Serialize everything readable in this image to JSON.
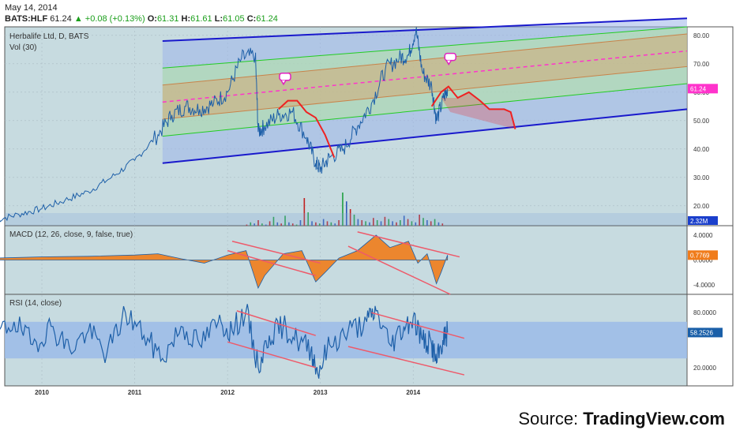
{
  "header": {
    "date": "May 14, 2014",
    "symbol": "BATS:HLF",
    "last": "61.24",
    "change": "+0.08 (+0.13%)",
    "o_label": "O:",
    "o": "61.31",
    "h_label": "H:",
    "h": "61.61",
    "l_label": "L:",
    "l": "61.05",
    "c_label": "C:",
    "c": "61.24"
  },
  "source": {
    "prefix": "Source: ",
    "brand": "TradingView.com"
  },
  "colors": {
    "background": "#c7dbe0",
    "price_line": "#1d5fa8",
    "channel_outer": "#1919cc",
    "channel_inner": "#22cc22",
    "channel_mid": "#ff33cc",
    "band_orange": "#d9a066",
    "projection_red": "#ee2222",
    "macd_orange": "#f07c1b",
    "rsi_band": "#9bbbe8",
    "trendline": "#ee5a6a"
  },
  "chart_data": [
    {
      "type": "line",
      "panel": "price",
      "title": "Herbalife Ltd, D, BATS",
      "indicator_label": "Vol (30)",
      "x_ticks": [
        "2010",
        "2011",
        "2012",
        "2013",
        "2014"
      ],
      "y_ticks": [
        "80.00",
        "70.00",
        "60.00",
        "50.00",
        "40.00",
        "30.00",
        "20.00"
      ],
      "ylim": [
        13,
        83
      ],
      "last_value_label": "61.24",
      "volume_label": "2.32M",
      "series": [
        {
          "values_x": [
            2009.5,
            2009.75,
            2010.0,
            2010.25,
            2010.5,
            2010.75,
            2011.0,
            2011.25,
            2011.4,
            2011.55,
            2011.7,
            2011.85,
            2012.0,
            2012.15,
            2012.3,
            2012.33,
            2012.4,
            2012.55,
            2012.7,
            2012.85,
            2012.95,
            2013.0,
            2013.1,
            2013.25,
            2013.4,
            2013.55,
            2013.7,
            2013.85,
            2013.95,
            2014.03,
            2014.1,
            2014.2,
            2014.25,
            2014.33,
            2014.37
          ],
          "values_y": [
            15,
            17,
            19,
            22,
            25,
            30,
            36,
            45,
            52,
            55,
            54,
            56,
            60,
            72,
            73,
            46,
            48,
            52,
            53,
            44,
            35,
            33,
            37,
            40,
            48,
            56,
            68,
            72,
            73,
            82,
            67,
            62,
            50,
            58,
            61.24
          ]
        }
      ]
    },
    {
      "type": "area",
      "panel": "macd",
      "title": "MACD (12, 26, close, 9, false, true)",
      "y_ticks": [
        "4.0000",
        "0.0000",
        "-4.0000"
      ],
      "ylim": [
        -5.5,
        5.5
      ],
      "last_value_label": "0.7769",
      "x": [
        2009.5,
        2010.0,
        2010.5,
        2011.0,
        2011.25,
        2011.5,
        2011.75,
        2012.0,
        2012.2,
        2012.33,
        2012.4,
        2012.6,
        2012.8,
        2012.95,
        2013.05,
        2013.2,
        2013.4,
        2013.6,
        2013.75,
        2013.95,
        2014.05,
        2014.15,
        2014.25,
        2014.3,
        2014.37
      ],
      "values": [
        0.3,
        0.5,
        0.6,
        0.8,
        1.0,
        0.2,
        -0.5,
        0.8,
        1.5,
        -4.5,
        -2.5,
        1.0,
        1.5,
        -3.5,
        -2.0,
        0.3,
        1.5,
        4.0,
        2.0,
        3.0,
        -0.5,
        1.0,
        -3.8,
        -2.0,
        0.78
      ]
    },
    {
      "type": "line",
      "panel": "rsi",
      "title": "RSI (14, close)",
      "y_ticks": [
        "80.0000",
        "20.0000"
      ],
      "ylim": [
        0,
        100
      ],
      "band": [
        30,
        70
      ],
      "last_value_label": "58.2526",
      "x": [
        2009.5,
        2009.7,
        2009.9,
        2010.1,
        2010.3,
        2010.5,
        2010.7,
        2010.9,
        2011.1,
        2011.3,
        2011.5,
        2011.7,
        2011.9,
        2012.05,
        2012.2,
        2012.33,
        2012.45,
        2012.6,
        2012.75,
        2012.9,
        2012.97,
        2013.1,
        2013.3,
        2013.5,
        2013.6,
        2013.75,
        2013.9,
        2014.0,
        2014.1,
        2014.2,
        2014.25,
        2014.32,
        2014.37
      ],
      "values": [
        55,
        70,
        45,
        65,
        40,
        60,
        35,
        80,
        55,
        30,
        65,
        45,
        70,
        60,
        82,
        20,
        55,
        65,
        50,
        40,
        15,
        45,
        60,
        70,
        82,
        45,
        65,
        75,
        50,
        45,
        25,
        50,
        58.25
      ]
    }
  ]
}
